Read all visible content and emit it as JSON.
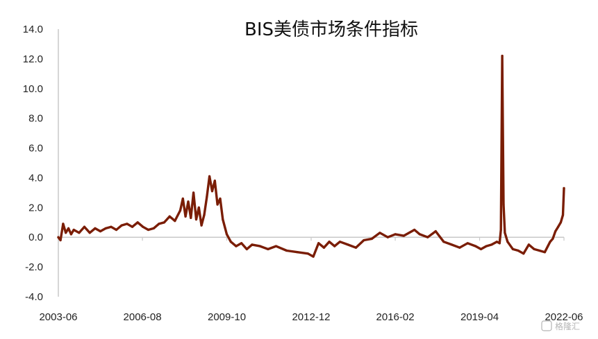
{
  "chart_data": {
    "type": "line",
    "title": "BIS美债市场条件指标",
    "xlabel": "",
    "ylabel": "",
    "ylim": [
      -4.0,
      14.0
    ],
    "yticks": [
      "14.0",
      "12.0",
      "10.0",
      "8.0",
      "6.0",
      "4.0",
      "2.0",
      "0.0",
      "-2.0",
      "-4.0"
    ],
    "ytick_values": [
      14,
      12,
      10,
      8,
      6,
      4,
      2,
      0,
      -2,
      -4
    ],
    "xticks": [
      "2003-06",
      "2006-08",
      "2009-10",
      "2012-12",
      "2016-02",
      "2019-04",
      "2022-06"
    ],
    "xtick_values": [
      2003.42,
      2006.58,
      2009.75,
      2012.92,
      2016.08,
      2019.25,
      2022.42
    ],
    "xlim": [
      2003.42,
      2022.42
    ],
    "grid": false,
    "legend": "none",
    "line_color": "#7a1d05",
    "series": [
      {
        "x": [
          2003.42,
          2003.5,
          2003.6,
          2003.7,
          2003.8,
          2003.9,
          2004.0,
          2004.2,
          2004.4,
          2004.6,
          2004.8,
          2005.0,
          2005.2,
          2005.4,
          2005.6,
          2005.8,
          2006.0,
          2006.2,
          2006.4,
          2006.6,
          2006.8,
          2007.0,
          2007.2,
          2007.4,
          2007.6,
          2007.8,
          2008.0,
          2008.1,
          2008.2,
          2008.3,
          2008.4,
          2008.5,
          2008.6,
          2008.7,
          2008.8,
          2008.9,
          2009.0,
          2009.1,
          2009.2,
          2009.3,
          2009.4,
          2009.5,
          2009.6,
          2009.75,
          2009.9,
          2010.1,
          2010.3,
          2010.5,
          2010.7,
          2011.0,
          2011.3,
          2011.6,
          2012.0,
          2012.4,
          2012.8,
          2013.0,
          2013.2,
          2013.4,
          2013.6,
          2013.8,
          2014.0,
          2014.3,
          2014.6,
          2014.9,
          2015.2,
          2015.5,
          2015.8,
          2016.08,
          2016.4,
          2016.8,
          2017.0,
          2017.3,
          2017.6,
          2017.9,
          2018.2,
          2018.5,
          2018.8,
          2019.1,
          2019.3,
          2019.5,
          2019.7,
          2019.9,
          2020.0,
          2020.05,
          2020.1,
          2020.15,
          2020.2,
          2020.3,
          2020.5,
          2020.7,
          2020.9,
          2021.1,
          2021.3,
          2021.5,
          2021.7,
          2021.9,
          2022.0,
          2022.1,
          2022.2,
          2022.3,
          2022.38,
          2022.42
        ],
        "y": [
          0.0,
          -0.2,
          0.9,
          0.3,
          0.6,
          0.2,
          0.5,
          0.3,
          0.7,
          0.3,
          0.6,
          0.4,
          0.6,
          0.7,
          0.5,
          0.8,
          0.9,
          0.7,
          1.0,
          0.7,
          0.5,
          0.6,
          0.9,
          1.0,
          1.4,
          1.1,
          1.8,
          2.6,
          1.4,
          2.4,
          1.3,
          3.0,
          1.2,
          2.0,
          0.8,
          1.5,
          2.7,
          4.1,
          3.1,
          3.8,
          2.2,
          2.6,
          1.2,
          0.2,
          -0.3,
          -0.6,
          -0.4,
          -0.8,
          -0.5,
          -0.6,
          -0.8,
          -0.6,
          -0.9,
          -1.0,
          -1.1,
          -1.3,
          -0.4,
          -0.7,
          -0.3,
          -0.6,
          -0.3,
          -0.5,
          -0.7,
          -0.2,
          -0.1,
          0.3,
          0.0,
          0.2,
          0.1,
          0.5,
          0.2,
          0.0,
          0.4,
          -0.3,
          -0.5,
          -0.7,
          -0.4,
          -0.6,
          -0.8,
          -0.6,
          -0.5,
          -0.3,
          -0.4,
          0.5,
          12.2,
          2.2,
          0.3,
          -0.3,
          -0.8,
          -0.9,
          -1.1,
          -0.5,
          -0.8,
          -0.9,
          -1.0,
          -0.3,
          -0.1,
          0.4,
          0.7,
          1.0,
          1.5,
          3.3
        ]
      }
    ],
    "watermark": "格隆汇"
  }
}
